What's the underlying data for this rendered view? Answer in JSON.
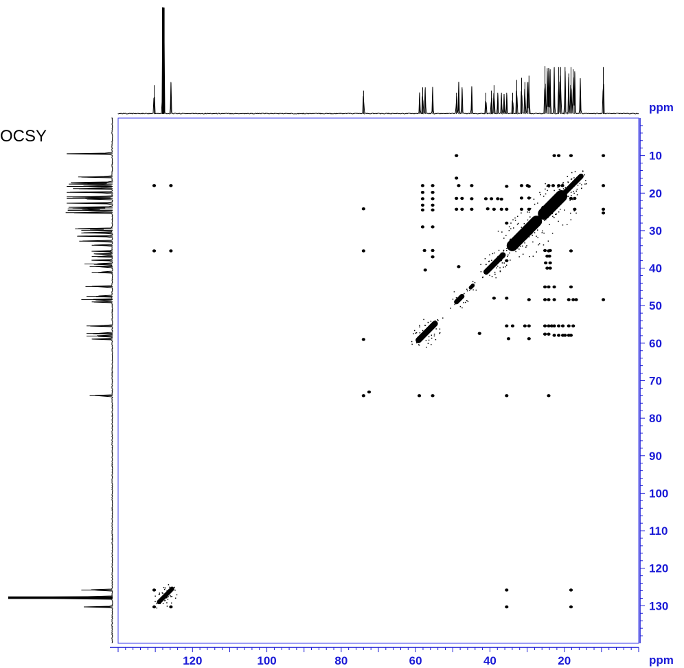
{
  "chart_data": {
    "type": "scatter",
    "title": "OCSY",
    "x_unit": "ppm",
    "y_unit": "ppm",
    "xlim": [
      140,
      0
    ],
    "ylim": [
      0,
      140
    ],
    "x_ticks": [
      120,
      100,
      80,
      60,
      40,
      20
    ],
    "y_ticks": [
      10,
      20,
      30,
      40,
      50,
      60,
      70,
      80,
      90,
      100,
      110,
      120,
      130
    ],
    "grid": false,
    "legend": "none",
    "colors": {
      "axis": "#1a1ad6",
      "plot_border": "#3a3ae8",
      "data": "#000000"
    },
    "projection_peaks": [
      {
        "ppm": 130.3,
        "height": 0.27
      },
      {
        "ppm": 128.0,
        "height": 1.0
      },
      {
        "ppm": 127.7,
        "height": 1.0
      },
      {
        "ppm": 125.8,
        "height": 0.3
      },
      {
        "ppm": 74.0,
        "height": 0.22
      },
      {
        "ppm": 58.9,
        "height": 0.2
      },
      {
        "ppm": 58.1,
        "height": 0.25
      },
      {
        "ppm": 57.4,
        "height": 0.25
      },
      {
        "ppm": 55.4,
        "height": 0.25
      },
      {
        "ppm": 49.0,
        "height": 0.2
      },
      {
        "ppm": 48.4,
        "height": 0.3
      },
      {
        "ppm": 47.5,
        "height": 0.25
      },
      {
        "ppm": 44.9,
        "height": 0.26
      },
      {
        "ppm": 41.1,
        "height": 0.2
      },
      {
        "ppm": 39.6,
        "height": 0.22
      },
      {
        "ppm": 38.9,
        "height": 0.27
      },
      {
        "ppm": 37.9,
        "height": 0.2
      },
      {
        "ppm": 36.9,
        "height": 0.2
      },
      {
        "ppm": 36.2,
        "height": 0.18
      },
      {
        "ppm": 35.5,
        "height": 0.2
      },
      {
        "ppm": 33.9,
        "height": 0.2
      },
      {
        "ppm": 32.8,
        "height": 0.32
      },
      {
        "ppm": 31.5,
        "height": 0.34
      },
      {
        "ppm": 30.6,
        "height": 0.3
      },
      {
        "ppm": 29.9,
        "height": 0.3
      },
      {
        "ppm": 29.5,
        "height": 0.36
      },
      {
        "ppm": 25.2,
        "height": 0.45
      },
      {
        "ppm": 24.6,
        "height": 0.43
      },
      {
        "ppm": 24.2,
        "height": 0.43
      },
      {
        "ppm": 23.8,
        "height": 0.42
      },
      {
        "ppm": 22.7,
        "height": 0.44
      },
      {
        "ppm": 21.5,
        "height": 0.44
      },
      {
        "ppm": 21.0,
        "height": 0.44
      },
      {
        "ppm": 19.8,
        "height": 0.44
      },
      {
        "ppm": 18.8,
        "height": 0.38
      },
      {
        "ppm": 18.2,
        "height": 0.44
      },
      {
        "ppm": 17.6,
        "height": 0.42
      },
      {
        "ppm": 17.2,
        "height": 0.4
      },
      {
        "ppm": 15.7,
        "height": 0.33
      },
      {
        "ppm": 9.5,
        "height": 0.44
      }
    ],
    "diagonal_segments": [
      {
        "from": 59.2,
        "to": 54.8,
        "width": 1.6
      },
      {
        "from": 49.0,
        "to": 47.5,
        "width": 1.3
      },
      {
        "from": 45.2,
        "to": 44.6,
        "width": 1.0
      },
      {
        "from": 41.0,
        "to": 36.5,
        "width": 1.5
      },
      {
        "from": 34.0,
        "to": 27.5,
        "width": 3.0
      },
      {
        "from": 25.5,
        "to": 20.8,
        "width": 3.2
      },
      {
        "from": 20.5,
        "to": 15.5,
        "width": 1.4
      },
      {
        "from": 129.0,
        "to": 125.5,
        "width": 1.2
      }
    ],
    "cross_peaks": [
      [
        130.3,
        18.0
      ],
      [
        125.8,
        18.0
      ],
      [
        130.3,
        35.4
      ],
      [
        125.8,
        35.4
      ],
      [
        74.0,
        24.2
      ],
      [
        74.0,
        35.4
      ],
      [
        58.1,
        18.0
      ],
      [
        55.4,
        18.0
      ],
      [
        58.1,
        19.8
      ],
      [
        55.4,
        19.8
      ],
      [
        58.1,
        21.5
      ],
      [
        55.4,
        21.5
      ],
      [
        58.1,
        23.2
      ],
      [
        55.4,
        23.2
      ],
      [
        58.1,
        24.5
      ],
      [
        55.4,
        24.5
      ],
      [
        57.6,
        35.3
      ],
      [
        55.4,
        35.3
      ],
      [
        55.4,
        37.0
      ],
      [
        57.4,
        40.5
      ],
      [
        58.1,
        29.0
      ],
      [
        55.4,
        29.0
      ],
      [
        49.0,
        10.0
      ],
      [
        49.0,
        16.0
      ],
      [
        48.4,
        18.0
      ],
      [
        44.9,
        18.0
      ],
      [
        49.0,
        21.4
      ],
      [
        47.5,
        21.4
      ],
      [
        44.9,
        21.5
      ],
      [
        49.0,
        24.3
      ],
      [
        47.5,
        24.3
      ],
      [
        44.9,
        24.3
      ],
      [
        48.4,
        39.6
      ],
      [
        41.1,
        21.5
      ],
      [
        39.6,
        21.5
      ],
      [
        37.9,
        21.5
      ],
      [
        36.9,
        21.6
      ],
      [
        40.6,
        24.2
      ],
      [
        38.9,
        24.3
      ],
      [
        36.9,
        24.3
      ],
      [
        35.5,
        24.3
      ],
      [
        35.5,
        18.2
      ],
      [
        35.5,
        28.0
      ],
      [
        35.5,
        38.0
      ],
      [
        31.5,
        18.0
      ],
      [
        29.9,
        18.0
      ],
      [
        29.5,
        18.2
      ],
      [
        31.5,
        21.3
      ],
      [
        29.5,
        21.3
      ],
      [
        31.5,
        24.3
      ],
      [
        29.5,
        24.3
      ],
      [
        22.7,
        10.0
      ],
      [
        21.5,
        10.0
      ],
      [
        18.2,
        10.0
      ],
      [
        9.5,
        10.0
      ],
      [
        24.2,
        18.0
      ],
      [
        23.0,
        18.0
      ],
      [
        21.5,
        18.0
      ],
      [
        20.5,
        18.0
      ],
      [
        9.5,
        18.0
      ],
      [
        18.2,
        21.4
      ],
      [
        17.2,
        21.4
      ],
      [
        17.2,
        24.3
      ],
      [
        9.5,
        24.3
      ],
      [
        9.5,
        25.3
      ],
      [
        25.2,
        35.3
      ],
      [
        24.2,
        35.4
      ],
      [
        23.8,
        35.3
      ],
      [
        18.2,
        35.4
      ],
      [
        24.6,
        36.8
      ],
      [
        24.0,
        36.8
      ],
      [
        25.0,
        38.6
      ],
      [
        23.8,
        38.6
      ],
      [
        24.6,
        40.0
      ],
      [
        23.8,
        40.0
      ],
      [
        25.2,
        45.0
      ],
      [
        24.2,
        45.0
      ],
      [
        22.7,
        45.0
      ],
      [
        18.2,
        45.0
      ],
      [
        25.2,
        48.4
      ],
      [
        24.2,
        48.4
      ],
      [
        22.7,
        48.4
      ],
      [
        18.8,
        48.4
      ],
      [
        17.6,
        48.4
      ],
      [
        16.8,
        48.4
      ],
      [
        9.5,
        48.4
      ],
      [
        35.5,
        48.0
      ],
      [
        38.9,
        48.0
      ],
      [
        29.5,
        48.4
      ],
      [
        35.5,
        55.4
      ],
      [
        33.9,
        55.4
      ],
      [
        30.6,
        55.4
      ],
      [
        29.5,
        55.4
      ],
      [
        25.2,
        55.4
      ],
      [
        24.2,
        55.4
      ],
      [
        23.4,
        55.4
      ],
      [
        22.7,
        55.4
      ],
      [
        21.5,
        55.4
      ],
      [
        20.4,
        55.4
      ],
      [
        18.8,
        55.4
      ],
      [
        17.6,
        55.4
      ],
      [
        25.2,
        57.6
      ],
      [
        24.2,
        57.6
      ],
      [
        22.7,
        57.9
      ],
      [
        21.5,
        57.9
      ],
      [
        20.4,
        57.9
      ],
      [
        19.8,
        57.9
      ],
      [
        18.8,
        57.9
      ],
      [
        18.2,
        57.9
      ],
      [
        42.8,
        57.4
      ],
      [
        35.0,
        58.8
      ],
      [
        29.5,
        58.8
      ],
      [
        74.0,
        59.0
      ],
      [
        74.0,
        74.0
      ],
      [
        72.5,
        73.0
      ],
      [
        59.0,
        74.0
      ],
      [
        55.4,
        74.0
      ],
      [
        35.5,
        74.0
      ],
      [
        24.2,
        74.0
      ],
      [
        130.3,
        125.8
      ],
      [
        130.3,
        130.3
      ],
      [
        125.8,
        130.3
      ],
      [
        35.5,
        125.8
      ],
      [
        35.5,
        130.3
      ],
      [
        18.2,
        125.8
      ],
      [
        18.2,
        130.3
      ]
    ]
  }
}
